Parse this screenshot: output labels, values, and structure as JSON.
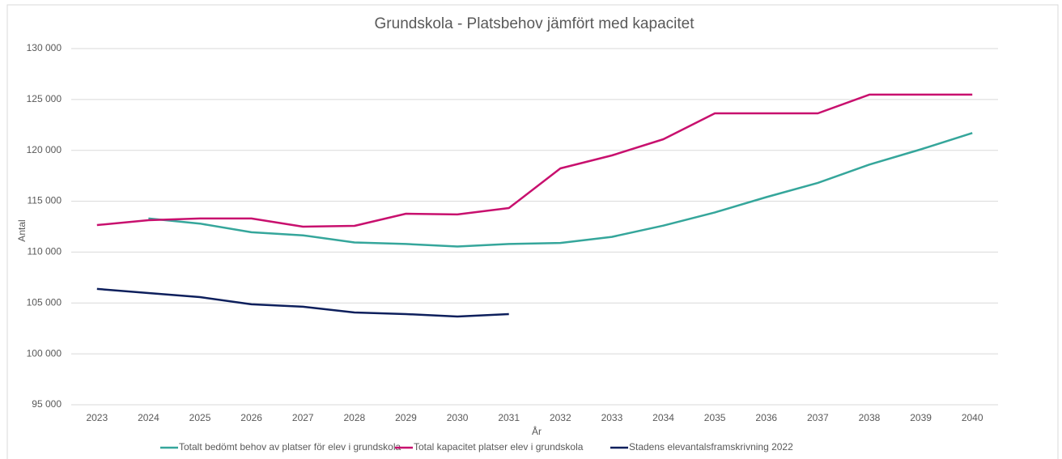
{
  "chart_data": {
    "type": "line",
    "title": "Grundskola - Platsbehov jämfört med kapacitet",
    "x_label": "År",
    "y_label": "Antal",
    "categories": [
      "2023",
      "2024",
      "2025",
      "2026",
      "2027",
      "2028",
      "2029",
      "2030",
      "2031",
      "2032",
      "2033",
      "2034",
      "2035",
      "2036",
      "2037",
      "2038",
      "2039",
      "2040"
    ],
    "series": [
      {
        "name": "Totalt bedömt behov av platser för elev i grundskola",
        "color": "#35a69b",
        "values": [
          null,
          113300,
          112800,
          111950,
          111650,
          110950,
          110800,
          110550,
          110800,
          110900,
          111500,
          112600,
          113900,
          115400,
          116800,
          118600,
          120100,
          121700
        ]
      },
      {
        "name": "Total kapacitet platser elev i grundskola",
        "color": "#c8106e",
        "values": [
          112660,
          113140,
          113300,
          113300,
          112500,
          112580,
          113770,
          113700,
          114330,
          118230,
          119500,
          121090,
          123640,
          123640,
          123640,
          125470,
          125470,
          125470
        ]
      },
      {
        "name": "Stadens elevantalsframskrivning 2022",
        "color": "#0d1f5c",
        "values": [
          106380,
          105980,
          105580,
          104870,
          104630,
          104070,
          103910,
          103670,
          103910,
          null,
          null,
          null,
          null,
          null,
          null,
          null,
          null,
          null
        ]
      }
    ],
    "ylim": [
      95000,
      130000
    ],
    "yticks": [
      {
        "value": 95000,
        "label": "95 000"
      },
      {
        "value": 100000,
        "label": "100 000"
      },
      {
        "value": 105000,
        "label": "105 000"
      },
      {
        "value": 110000,
        "label": "110 000"
      },
      {
        "value": 115000,
        "label": "115 000"
      },
      {
        "value": 120000,
        "label": "120 000"
      },
      {
        "value": 125000,
        "label": "125 000"
      },
      {
        "value": 130000,
        "label": "130 000"
      }
    ],
    "grid": true,
    "legend": "bottom"
  }
}
